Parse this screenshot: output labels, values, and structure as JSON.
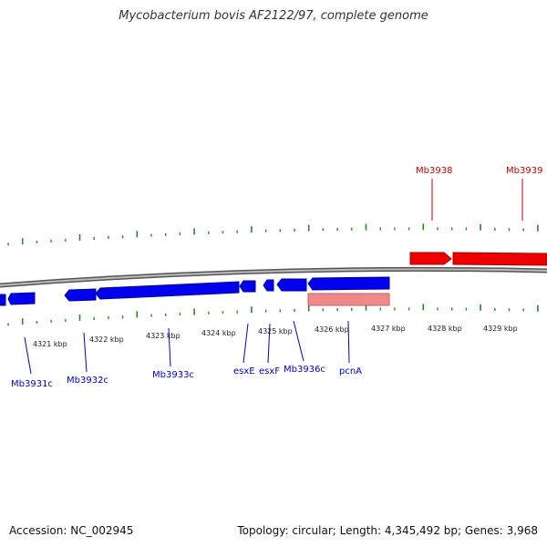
{
  "title": "Mycobacterium bovis AF2122/97, complete genome",
  "footer": {
    "accession": "Accession: NC_002945",
    "topology": "Topology: circular; Length: 4,345,492 bp; Genes: 3,968"
  },
  "colors": {
    "forward_strand": "#ff0000",
    "reverse_strand": "#0000ff",
    "pseudo_feature": "#f08a8a",
    "gc_skew_ticks": "#228b22",
    "backbone": "#888888"
  },
  "axis_labels": [
    "4321 kbp",
    "4322 kbp",
    "4323 kbp",
    "4324 kbp",
    "4325 kbp",
    "4326 kbp",
    "4327 kbp",
    "4328 kbp",
    "4329 kbp"
  ],
  "forward_genes": [
    "Mb3938",
    "Mb3939"
  ],
  "reverse_genes": [
    "Mb3931c",
    "Mb3932c",
    "Mb3933c",
    "esxE",
    "esxF",
    "Mb3936c",
    "pcnA"
  ]
}
